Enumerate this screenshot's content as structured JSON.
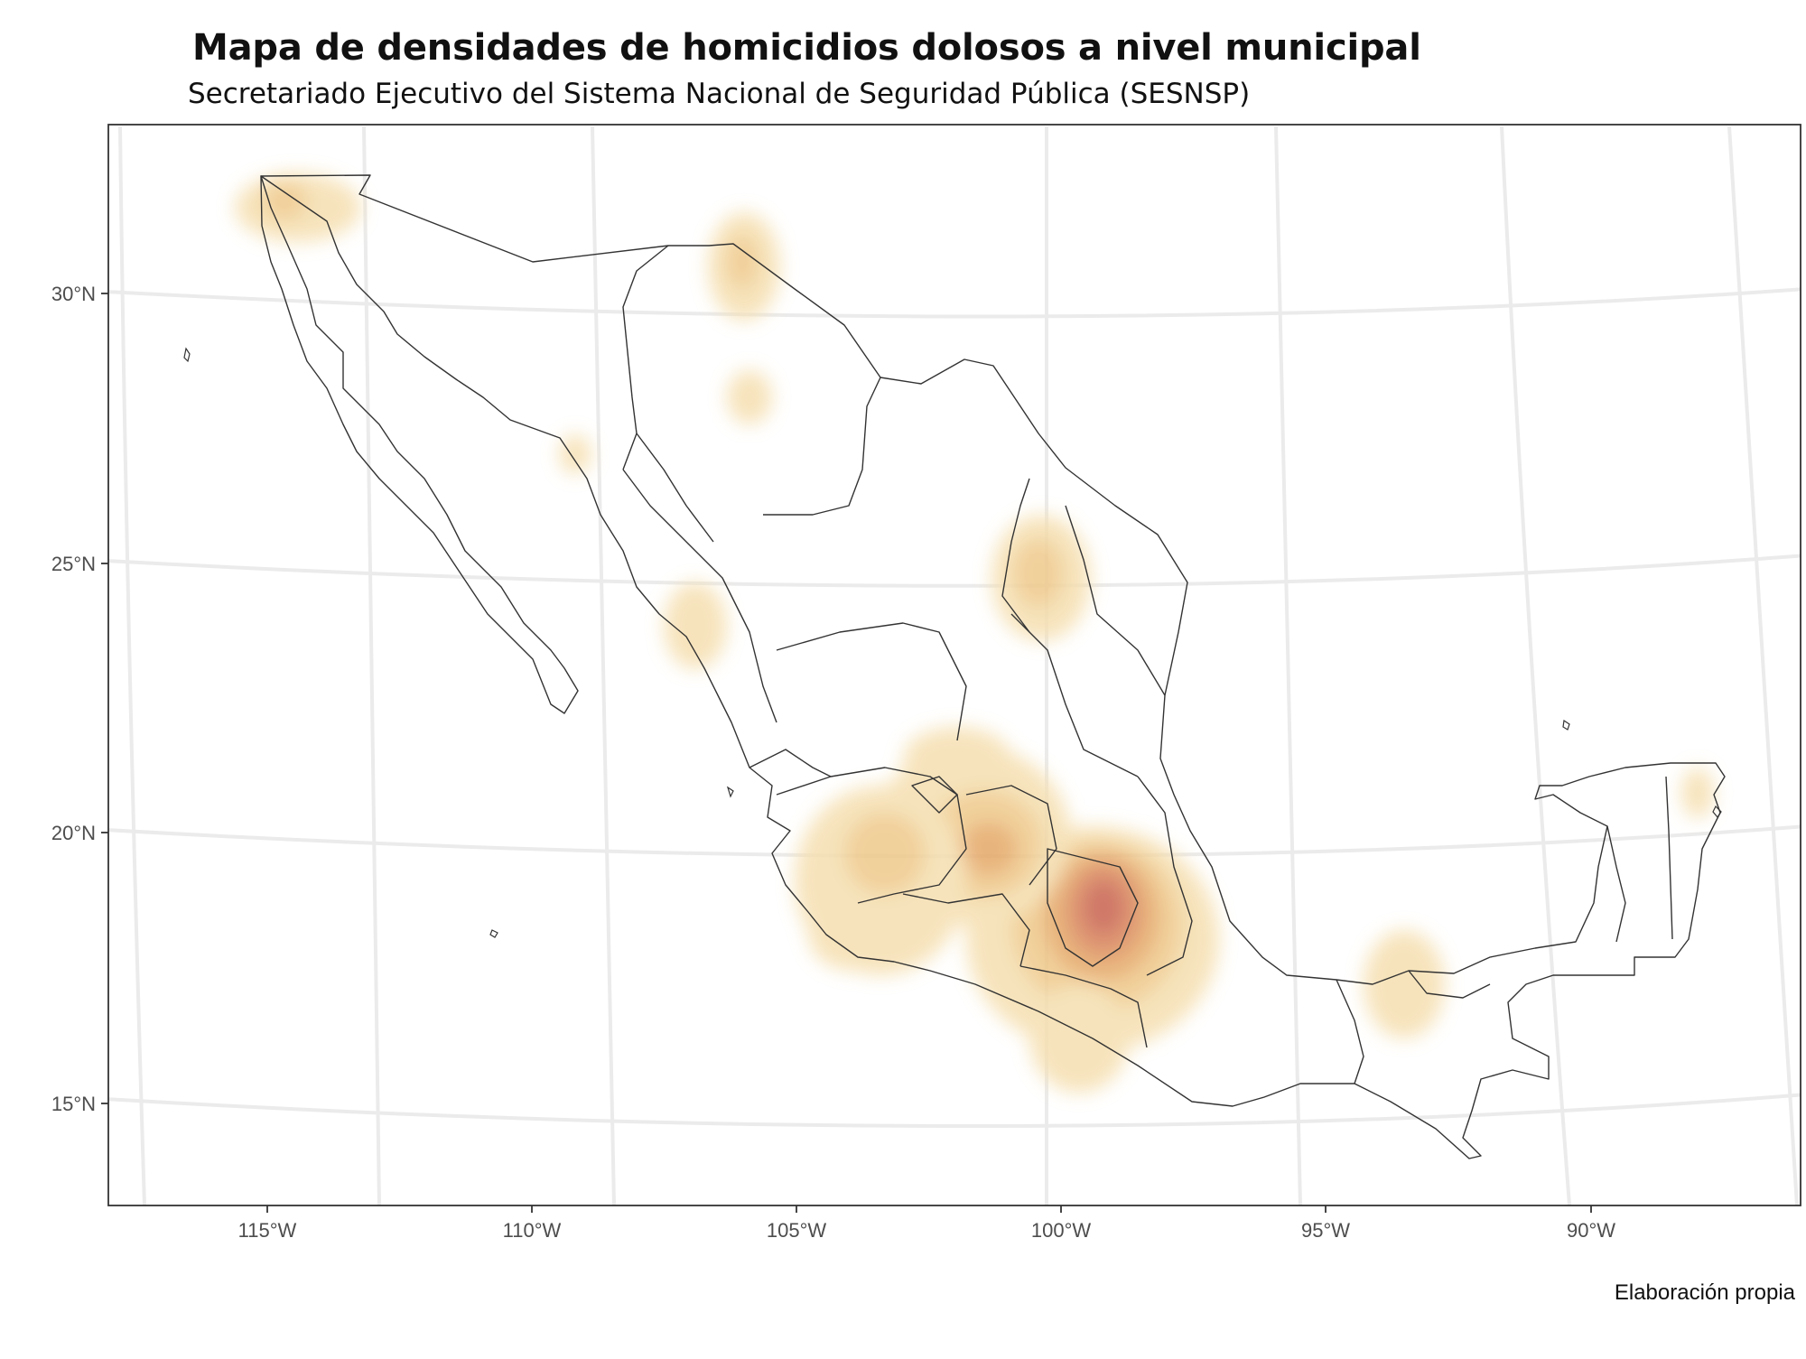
{
  "title": "Mapa de densidades de homicidios dolosos a nivel municipal",
  "subtitle": "Secretariado Ejecutivo del Sistema Nacional de Seguridad Pública (SESNSP)",
  "caption": "Elaboración propia",
  "map": {
    "region": "México",
    "graticule": true,
    "lon_ticks": [
      "115°W",
      "110°W",
      "105°W",
      "100°W",
      "95°W",
      "90°W"
    ],
    "lat_ticks": [
      "30°N",
      "25°N",
      "20°N",
      "15°N"
    ],
    "density_palette": [
      "#f5dfb0",
      "#efc98a",
      "#e5a867",
      "#d9845a",
      "#c86050"
    ],
    "density_hotspots": [
      {
        "lon": -99.2,
        "lat": 18.6,
        "level": 5
      },
      {
        "lon": -101.3,
        "lat": 19.8,
        "level": 3
      },
      {
        "lon": -103.3,
        "lat": 19.7,
        "level": 2
      },
      {
        "lon": -100.4,
        "lat": 24.8,
        "level": 2
      },
      {
        "lon": -114.8,
        "lat": 32.1,
        "level": 2
      },
      {
        "lon": -106.0,
        "lat": 30.6,
        "level": 2
      },
      {
        "lon": -93.4,
        "lat": 17.0,
        "level": 1
      },
      {
        "lon": -99.8,
        "lat": 16.0,
        "level": 1
      },
      {
        "lon": -106.8,
        "lat": 24.0,
        "level": 1
      },
      {
        "lon": -105.8,
        "lat": 27.8,
        "level": 1
      },
      {
        "lon": -109.2,
        "lat": 27.0,
        "level": 1
      },
      {
        "lon": -87.2,
        "lat": 20.7,
        "level": 1
      }
    ]
  }
}
